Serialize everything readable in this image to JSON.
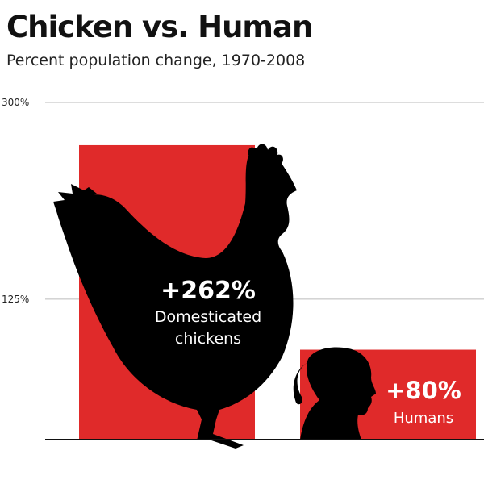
{
  "title": "Chicken vs. Human",
  "subtitle": "Percent population change, 1970-2008",
  "colors": {
    "bar": "#e02a2a",
    "silhouette": "#000000",
    "gridline": "#bbbbbb",
    "baseline": "#111111"
  },
  "icons": [
    "chicken-silhouette-icon",
    "human-head-silhouette-icon"
  ],
  "chart_data": {
    "type": "bar",
    "title": "Chicken vs. Human",
    "subtitle": "Percent population change, 1970-2008",
    "xlabel": "",
    "ylabel": "",
    "ylim": [
      0,
      300
    ],
    "yticks": [
      {
        "value": 300,
        "label": "300%"
      },
      {
        "value": 125,
        "label": "125%"
      }
    ],
    "grid": true,
    "categories": [
      "Domesticated chickens",
      "Humans"
    ],
    "values": [
      262,
      80
    ],
    "value_labels": [
      "+262%",
      "+80%"
    ],
    "category_labels": [
      [
        "Domesticated",
        "chickens"
      ],
      [
        "Humans"
      ]
    ]
  }
}
